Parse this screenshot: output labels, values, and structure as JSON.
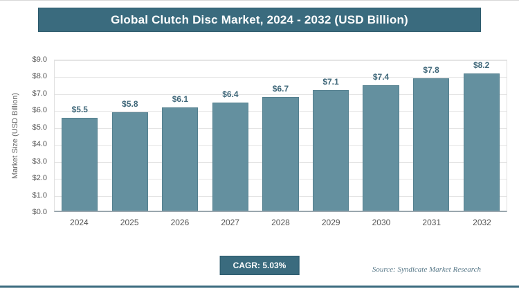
{
  "header": {
    "title": "Global Clutch Disc Market, 2024 - 2032 (USD Billion)"
  },
  "chart_data": {
    "type": "bar",
    "title": "Global Clutch Disc Market, 2024 - 2032 (USD Billion)",
    "categories": [
      "2024",
      "2025",
      "2026",
      "2027",
      "2028",
      "2029",
      "2030",
      "2031",
      "2032"
    ],
    "values": [
      5.5,
      5.8,
      6.1,
      6.4,
      6.7,
      7.1,
      7.4,
      7.8,
      8.2
    ],
    "value_labels": [
      "$5.5",
      "$5.8",
      "$6.1",
      "$6.4",
      "$6.7",
      "$7.1",
      "$7.4",
      "$7.8",
      "$8.2"
    ],
    "xlabel": "",
    "ylabel": "Market Size (USD Billion)",
    "ylim": [
      0,
      9
    ],
    "ytick_step": 1,
    "ytick_labels": [
      "$0.0",
      "$1.0",
      "$2.0",
      "$3.0",
      "$4.0",
      "$5.0",
      "$6.0",
      "$7.0",
      "$8.0",
      "$9.0"
    ],
    "grid": true,
    "legend": false
  },
  "footer": {
    "cagr_label": "CAGR: 5.03%",
    "source": "Source: Syndicate Market Research"
  },
  "colors": {
    "header_bg": "#3a6b7e",
    "header_border": "#2c5a6c",
    "bar": "#64909f",
    "bar_border": "#54808f",
    "value_label": "#40687a",
    "accent": "#3a6b7e"
  }
}
